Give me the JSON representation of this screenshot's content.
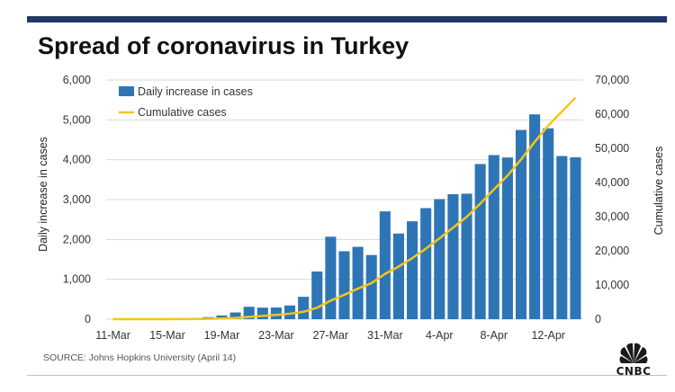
{
  "header": {
    "title": "Spread of coronavirus in Turkey"
  },
  "footer": {
    "source": "SOURCE: Johns Hopkins University (April 14)"
  },
  "brand": {
    "name": "CNBC"
  },
  "colors": {
    "bar": "#2e75b6",
    "line": "#f5c518",
    "grid": "#d9d9d9",
    "topbar": "#1f3864"
  },
  "chart_data": {
    "type": "bar",
    "title": "Spread of coronavirus in Turkey",
    "xlabel": "",
    "ylabel": "Daily increase in cases",
    "y2label": "Cumulative cases",
    "ylim": [
      0,
      6000
    ],
    "y2lim": [
      0,
      70000
    ],
    "y_ticks": [
      "0",
      "1,000",
      "2,000",
      "3,000",
      "4,000",
      "5,000",
      "6,000"
    ],
    "y2_ticks": [
      "0",
      "10,000",
      "20,000",
      "30,000",
      "40,000",
      "50,000",
      "60,000",
      "70,000"
    ],
    "legend": {
      "position": "top-left",
      "entries": [
        "Daily increase in cases",
        "Cumulative cases"
      ]
    },
    "categories": [
      "11-Mar",
      "12-Mar",
      "13-Mar",
      "14-Mar",
      "15-Mar",
      "16-Mar",
      "17-Mar",
      "18-Mar",
      "19-Mar",
      "20-Mar",
      "21-Mar",
      "22-Mar",
      "23-Mar",
      "24-Mar",
      "25-Mar",
      "26-Mar",
      "27-Mar",
      "28-Mar",
      "29-Mar",
      "30-Mar",
      "31-Mar",
      "1-Apr",
      "2-Apr",
      "3-Apr",
      "4-Apr",
      "5-Apr",
      "6-Apr",
      "7-Apr",
      "8-Apr",
      "9-Apr",
      "10-Apr",
      "11-Apr",
      "12-Apr",
      "13-Apr",
      "14-Apr"
    ],
    "tick_labels": [
      "11-Mar",
      "15-Mar",
      "19-Mar",
      "23-Mar",
      "27-Mar",
      "31-Mar",
      "4-Apr",
      "8-Apr",
      "12-Apr"
    ],
    "series": [
      {
        "name": "Daily increase in cases",
        "axis": "left",
        "type": "bar",
        "values": [
          1,
          0,
          4,
          0,
          1,
          12,
          29,
          51,
          93,
          168,
          311,
          289,
          293,
          343,
          561,
          1196,
          2069,
          1704,
          1815,
          1610,
          2704,
          2148,
          2456,
          2786,
          3013,
          3135,
          3148,
          3892,
          4117,
          4056,
          4747,
          5138,
          4789,
          4093,
          4062
        ]
      },
      {
        "name": "Cumulative cases",
        "axis": "right",
        "type": "line",
        "values": [
          1,
          1,
          5,
          5,
          6,
          18,
          47,
          98,
          191,
          359,
          670,
          959,
          1252,
          1595,
          2156,
          3352,
          5421,
          7125,
          8940,
          10550,
          13254,
          15402,
          17858,
          20644,
          23657,
          26792,
          29940,
          33832,
          37949,
          42005,
          46752,
          51890,
          56679,
          60772,
          64834
        ]
      }
    ]
  }
}
